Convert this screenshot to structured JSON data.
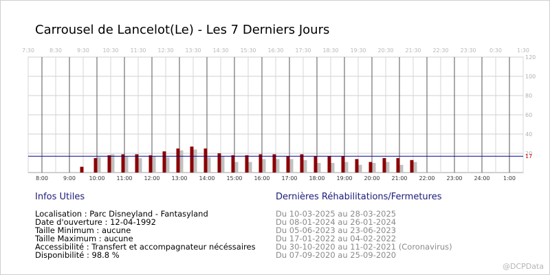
{
  "title": "Carrousel de Lancelot(Le) - Les 7 Derniers Jours",
  "chart_data": {
    "type": "bar",
    "top_ticks": [
      "7:30",
      "8:30",
      "9:30",
      "10:30",
      "11:30",
      "12:30",
      "13:30",
      "14:30",
      "15:30",
      "16:30",
      "17:30",
      "18:30",
      "19:30",
      "20:30",
      "21:30",
      "22:30",
      "23:30",
      "0:30",
      "1:30"
    ],
    "bottom_ticks": [
      "8:00",
      "9:00",
      "10:00",
      "11:00",
      "12:00",
      "13:00",
      "14:00",
      "15:00",
      "16:00",
      "17:00",
      "18:00",
      "19:00",
      "20:00",
      "21:00",
      "22:00",
      "23:00",
      "24:00",
      "1:00"
    ],
    "x_start_hour": 7.5,
    "x_end_hour": 25.5,
    "y_ticks": [
      20,
      40,
      60,
      80,
      100,
      120
    ],
    "ylim": [
      0,
      120
    ],
    "grid": true,
    "reference_line": {
      "value": 17,
      "label": "17",
      "color": "#00008b"
    },
    "series": [
      {
        "color": "#8b0000",
        "x": [
          9.5,
          10.0,
          10.5,
          11.0,
          11.5,
          12.0,
          12.5,
          13.0,
          13.5,
          14.0,
          14.5,
          15.0,
          15.5,
          16.0,
          16.5,
          17.0,
          17.5,
          18.0,
          18.5,
          19.0,
          19.5,
          20.0,
          20.5,
          21.0,
          21.5
        ],
        "values": [
          6,
          15,
          18,
          19,
          19,
          18,
          22,
          25,
          27,
          25,
          20,
          18,
          18,
          19,
          19,
          17,
          19,
          17,
          17,
          17,
          14,
          11,
          15,
          15,
          13
        ]
      },
      {
        "color": "#c0c0c0",
        "x": [
          10.0,
          10.5,
          11.0,
          11.5,
          12.0,
          12.5,
          13.0,
          13.5,
          14.0,
          14.5,
          15.0,
          15.5,
          16.0,
          16.5,
          17.0,
          17.5,
          18.0,
          18.5,
          19.0,
          19.5,
          20.0,
          20.5,
          21.0,
          21.5
        ],
        "values": [
          16,
          19,
          17,
          15,
          17,
          16,
          23,
          24,
          16,
          17,
          11,
          11,
          14,
          14,
          14,
          13,
          10,
          10,
          11,
          8,
          10,
          11,
          8,
          11
        ]
      }
    ]
  },
  "info": {
    "heading": "Infos Utiles",
    "rows": [
      "Localisation : Parc Disneyland - Fantasyland",
      "Date d'ouverture : 12-04-1992",
      "Taille Minimum : aucune",
      "Taille Maximum : aucune",
      "Accessibilité : Transfert et accompagnateur nécéssaires",
      "Disponibilité : 98.8 %"
    ]
  },
  "closures": {
    "heading": "Dernières Réhabilitations/Fermetures",
    "rows": [
      "Du 10-03-2025 au 28-03-2025",
      "Du 08-01-2024 au 26-01-2024",
      "Du 05-06-2023 au 23-06-2023",
      "Du 17-01-2022 au 04-02-2022",
      "Du 30-10-2020 au 11-02-2021 (Coronavirus)",
      "Du 07-09-2020 au 25-09-2020"
    ]
  },
  "watermark": "@DCPData"
}
